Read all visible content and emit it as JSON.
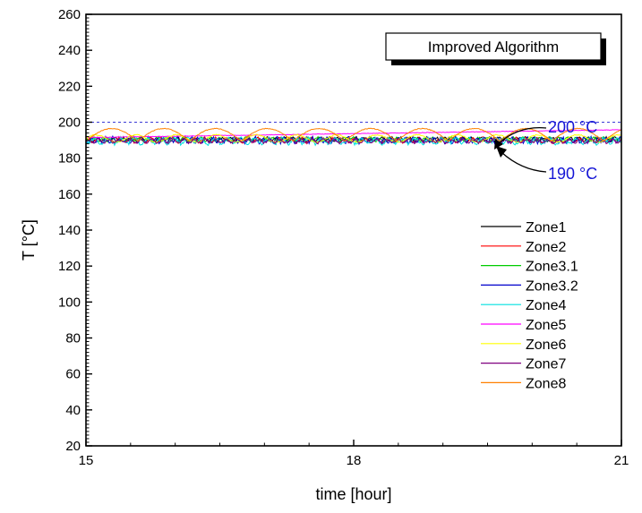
{
  "chart_data": {
    "type": "line",
    "title": "Improved Algorithm",
    "xlabel": "time [hour]",
    "ylabel": "T [°C]",
    "xlim": [
      15,
      21
    ],
    "ylim": [
      20,
      260
    ],
    "x_ticks": [
      15,
      18,
      21
    ],
    "y_ticks": [
      20,
      40,
      60,
      80,
      100,
      120,
      140,
      160,
      180,
      200,
      220,
      240,
      260
    ],
    "legend_position": "right",
    "reference_lines": [
      {
        "label": "200 °C",
        "y": 200,
        "style": "dashed",
        "color": "#3b3bd6"
      },
      {
        "label": "190 °C",
        "y": 190,
        "style": "marker",
        "color": "#3b3bd6"
      }
    ],
    "annotations": [
      {
        "text": "200 °C",
        "x": 19.6,
        "y": 200
      },
      {
        "text": "190 °C",
        "x": 19.6,
        "y": 189
      }
    ],
    "series": [
      {
        "name": "Zone1",
        "color": "#000000",
        "mean": 190.5,
        "amp": 1.0,
        "period": 0.1,
        "shape": "noise"
      },
      {
        "name": "Zone2",
        "color": "#ff0000",
        "mean": 190.0,
        "amp": 1.2,
        "period": 0.12,
        "shape": "noise"
      },
      {
        "name": "Zone3.1",
        "color": "#00cc00",
        "mean": 190.5,
        "amp": 1.0,
        "period": 0.1,
        "shape": "noise"
      },
      {
        "name": "Zone3.2",
        "color": "#0000cc",
        "mean": 190.0,
        "amp": 1.4,
        "period": 0.08,
        "shape": "noise"
      },
      {
        "name": "Zone4",
        "color": "#00e0e0",
        "mean": 189.5,
        "amp": 1.5,
        "period": 0.15,
        "shape": "noise"
      },
      {
        "name": "Zone5",
        "color": "#ff00ff",
        "start": 191.5,
        "end": 195.8,
        "shape": "ramp"
      },
      {
        "name": "Zone6",
        "color": "#ffff00",
        "mean": 191.0,
        "amp": 2.0,
        "period": 0.45,
        "shape": "wave"
      },
      {
        "name": "Zone7",
        "color": "#800080",
        "mean": 189.5,
        "amp": 1.0,
        "period": 0.12,
        "shape": "noise"
      },
      {
        "name": "Zone8",
        "color": "#ff8000",
        "mean": 189.5,
        "amp": 7.0,
        "period": 0.58,
        "shape": "arch"
      }
    ]
  }
}
